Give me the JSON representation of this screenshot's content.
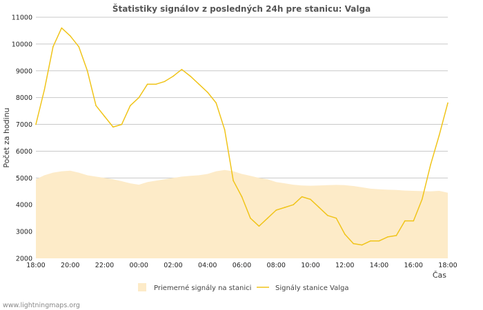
{
  "chart_data": {
    "type": "area",
    "title": "Štatistiky signálov z posledných 24h pre stanicu: Valga",
    "xlabel": "Čas",
    "ylabel": "Počet za hodinu",
    "ylim": [
      2000,
      11000
    ],
    "yticks": [
      "2000",
      "3000",
      "4000",
      "5000",
      "6000",
      "7000",
      "8000",
      "9000",
      "10000",
      "11000"
    ],
    "xlim": [
      0,
      24
    ],
    "xticks": [
      "18:00",
      "20:00",
      "22:00",
      "00:00",
      "02:00",
      "04:00",
      "06:00",
      "08:00",
      "10:00",
      "12:00",
      "14:00",
      "16:00",
      "18:00"
    ],
    "grid": true,
    "legend_position": "bottom",
    "series": [
      {
        "name": "Priemerné signály na stanici",
        "kind": "area",
        "color": "#fdebc8",
        "x": [
          0,
          0.5,
          1,
          1.5,
          2,
          2.5,
          3,
          3.5,
          4,
          4.5,
          5,
          5.5,
          6,
          6.5,
          7,
          7.5,
          8,
          8.5,
          9,
          9.5,
          10,
          10.5,
          11,
          11.5,
          12,
          12.5,
          13,
          13.5,
          14,
          14.5,
          15,
          15.5,
          16,
          16.5,
          17,
          17.5,
          18,
          18.5,
          19,
          19.5,
          20,
          20.5,
          21,
          21.5,
          22,
          22.5,
          23,
          23.5,
          24
        ],
        "values": [
          4950,
          5100,
          5200,
          5250,
          5270,
          5200,
          5100,
          5050,
          5000,
          4950,
          4880,
          4800,
          4750,
          4850,
          4900,
          4950,
          5000,
          5050,
          5080,
          5100,
          5150,
          5250,
          5300,
          5250,
          5150,
          5080,
          5000,
          4950,
          4850,
          4800,
          4750,
          4720,
          4710,
          4720,
          4730,
          4740,
          4730,
          4700,
          4650,
          4600,
          4580,
          4560,
          4550,
          4530,
          4520,
          4510,
          4500,
          4520,
          4450
        ]
      },
      {
        "name": "Signály stanice Valga",
        "kind": "line",
        "color": "#f0c419",
        "x": [
          0,
          0.5,
          1,
          1.5,
          2,
          2.5,
          3,
          3.5,
          4,
          4.5,
          5,
          5.5,
          6,
          6.5,
          7,
          7.5,
          8,
          8.5,
          9,
          9.5,
          10,
          10.5,
          11,
          11.5,
          12,
          12.5,
          13,
          13.5,
          14,
          14.5,
          15,
          15.5,
          16,
          16.5,
          17,
          17.5,
          18,
          18.5,
          19,
          19.5,
          20,
          20.5,
          21,
          21.5,
          22,
          22.5,
          23,
          23.5,
          24
        ],
        "values": [
          7000,
          8300,
          9900,
          10600,
          10300,
          9900,
          9000,
          7700,
          7300,
          6900,
          7000,
          7700,
          8000,
          8500,
          8500,
          8600,
          8800,
          9050,
          8800,
          8500,
          8200,
          7800,
          6800,
          4900,
          4300,
          3500,
          3200,
          3500,
          3800,
          3900,
          4000,
          4300,
          4200,
          3900,
          3600,
          3500,
          2900,
          2550,
          2500,
          2650,
          2650,
          2800,
          2850,
          3400,
          3400,
          4200,
          5500,
          6600,
          7800
        ]
      }
    ],
    "watermark": "www.lightningmaps.org"
  },
  "colors": {
    "background": "#ffffff",
    "grid": "#c8c8c8",
    "plot_background": "#ffffff"
  }
}
